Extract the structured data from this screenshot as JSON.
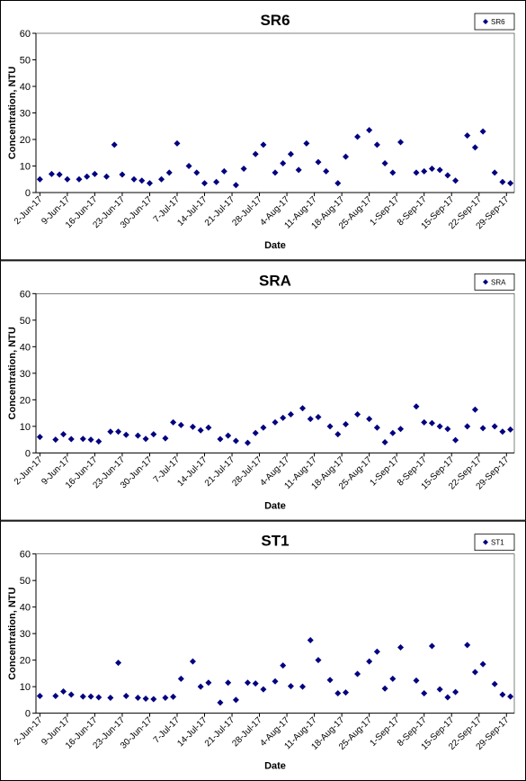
{
  "chart_data": [
    {
      "type": "scatter",
      "title": "SR6",
      "x_label": "Date",
      "y_label": "Concentration, NTU",
      "xlim": [
        "1-Jun-17",
        "1-Oct-17"
      ],
      "xticks": [
        "2-Jun-17",
        "9-Jun-17",
        "16-Jun-17",
        "23-Jun-17",
        "30-Jun-17",
        "7-Jul-17",
        "14-Jul-17",
        "21-Jul-17",
        "28-Jul-17",
        "4-Aug-17",
        "11-Aug-17",
        "18-Aug-17",
        "25-Aug-17",
        "1-Sep-17",
        "8-Sep-17",
        "15-Sep-17",
        "22-Sep-17",
        "29-Sep-17"
      ],
      "ylim": [
        0,
        60
      ],
      "yticks": [
        0,
        10,
        20,
        30,
        40,
        50,
        60
      ],
      "legend": "upper right",
      "series": [
        {
          "name": "SR6",
          "color": "#000080",
          "x": [
            "2-Jun-17",
            "5-Jun-17",
            "7-Jun-17",
            "9-Jun-17",
            "12-Jun-17",
            "14-Jun-17",
            "16-Jun-17",
            "19-Jun-17",
            "21-Jun-17",
            "23-Jun-17",
            "26-Jun-17",
            "28-Jun-17",
            "30-Jun-17",
            "3-Jul-17",
            "5-Jul-17",
            "7-Jul-17",
            "10-Jul-17",
            "12-Jul-17",
            "14-Jul-17",
            "17-Jul-17",
            "19-Jul-17",
            "22-Jul-17",
            "24-Jul-17",
            "27-Jul-17",
            "29-Jul-17",
            "1-Aug-17",
            "3-Aug-17",
            "5-Aug-17",
            "7-Aug-17",
            "9-Aug-17",
            "12-Aug-17",
            "14-Aug-17",
            "17-Aug-17",
            "19-Aug-17",
            "22-Aug-17",
            "25-Aug-17",
            "27-Aug-17",
            "29-Aug-17",
            "31-Aug-17",
            "2-Sep-17",
            "6-Sep-17",
            "8-Sep-17",
            "10-Sep-17",
            "12-Sep-17",
            "14-Sep-17",
            "16-Sep-17",
            "19-Sep-17",
            "21-Sep-17",
            "23-Sep-17",
            "26-Sep-17",
            "28-Sep-17",
            "30-Sep-17"
          ],
          "values": [
            5,
            7,
            6.8,
            5,
            5,
            6,
            7,
            6,
            18,
            6.8,
            5,
            4.5,
            3.5,
            5,
            7.5,
            18.5,
            10,
            7.5,
            3.5,
            4,
            8,
            2.8,
            9,
            14.5,
            18,
            7.5,
            11,
            14.5,
            8.5,
            18.5,
            11.5,
            8,
            3.5,
            13.5,
            21,
            23.5,
            18,
            11,
            7.5,
            19,
            7.5,
            8,
            9,
            8.5,
            6.5,
            4.5,
            21.5,
            17,
            23,
            7.5,
            4,
            3.5
          ]
        }
      ]
    },
    {
      "type": "scatter",
      "title": "SRA",
      "x_label": "Date",
      "y_label": "Concentration, NTU",
      "xlim": [
        "1-Jun-17",
        "1-Oct-17"
      ],
      "xticks": [
        "2-Jun-17",
        "9-Jun-17",
        "16-Jun-17",
        "23-Jun-17",
        "30-Jun-17",
        "7-Jul-17",
        "14-Jul-17",
        "21-Jul-17",
        "28-Jul-17",
        "4-Aug-17",
        "11-Aug-17",
        "18-Aug-17",
        "25-Aug-17",
        "1-Sep-17",
        "8-Sep-17",
        "15-Sep-17",
        "22-Sep-17",
        "29-Sep-17"
      ],
      "ylim": [
        0,
        60
      ],
      "yticks": [
        0,
        10,
        20,
        30,
        40,
        50,
        60
      ],
      "legend": "upper right",
      "series": [
        {
          "name": "SRA",
          "color": "#000080",
          "x": [
            "2-Jun-17",
            "6-Jun-17",
            "8-Jun-17",
            "10-Jun-17",
            "13-Jun-17",
            "15-Jun-17",
            "17-Jun-17",
            "20-Jun-17",
            "22-Jun-17",
            "24-Jun-17",
            "27-Jun-17",
            "29-Jun-17",
            "1-Jul-17",
            "4-Jul-17",
            "6-Jul-17",
            "8-Jul-17",
            "11-Jul-17",
            "13-Jul-17",
            "15-Jul-17",
            "18-Jul-17",
            "20-Jul-17",
            "22-Jul-17",
            "25-Jul-17",
            "27-Jul-17",
            "29-Jul-17",
            "1-Aug-17",
            "3-Aug-17",
            "5-Aug-17",
            "8-Aug-17",
            "10-Aug-17",
            "12-Aug-17",
            "15-Aug-17",
            "17-Aug-17",
            "19-Aug-17",
            "22-Aug-17",
            "25-Aug-17",
            "27-Aug-17",
            "29-Aug-17",
            "31-Aug-17",
            "2-Sep-17",
            "6-Sep-17",
            "8-Sep-17",
            "10-Sep-17",
            "12-Sep-17",
            "14-Sep-17",
            "16-Sep-17",
            "19-Sep-17",
            "21-Sep-17",
            "23-Sep-17",
            "26-Sep-17",
            "28-Sep-17",
            "30-Sep-17"
          ],
          "values": [
            6,
            5,
            7,
            5.2,
            5.3,
            5,
            4.3,
            8,
            8,
            6.8,
            6.5,
            5.3,
            7,
            5.5,
            11.5,
            10.5,
            9.8,
            8.5,
            9.5,
            5.2,
            6.5,
            4.5,
            3.8,
            7.5,
            9.5,
            11.5,
            13.2,
            14.5,
            16.8,
            12.8,
            13.5,
            10,
            7,
            10.8,
            14.5,
            12.8,
            9.5,
            4,
            7.5,
            9,
            17.5,
            11.5,
            11.2,
            10,
            9,
            4.8,
            10,
            16.3,
            9.3,
            10,
            8,
            8.8
          ]
        }
      ]
    },
    {
      "type": "scatter",
      "title": "ST1",
      "x_label": "Date",
      "y_label": "Concentration, NTU",
      "xlim": [
        "1-Jun-17",
        "1-Oct-17"
      ],
      "xticks": [
        "2-Jun-17",
        "9-Jun-17",
        "16-Jun-17",
        "23-Jun-17",
        "30-Jun-17",
        "7-Jul-17",
        "14-Jul-17",
        "21-Jul-17",
        "28-Jul-17",
        "4-Aug-17",
        "11-Aug-17",
        "18-Aug-17",
        "25-Aug-17",
        "1-Sep-17",
        "8-Sep-17",
        "15-Sep-17",
        "22-Sep-17",
        "29-Sep-17"
      ],
      "ylim": [
        0,
        60
      ],
      "yticks": [
        0,
        10,
        20,
        30,
        40,
        50,
        60
      ],
      "legend": "upper right",
      "series": [
        {
          "name": "ST1",
          "color": "#000080",
          "x": [
            "2-Jun-17",
            "6-Jun-17",
            "8-Jun-17",
            "10-Jun-17",
            "13-Jun-17",
            "15-Jun-17",
            "17-Jun-17",
            "20-Jun-17",
            "22-Jun-17",
            "24-Jun-17",
            "27-Jun-17",
            "29-Jun-17",
            "1-Jul-17",
            "4-Jul-17",
            "6-Jul-17",
            "8-Jul-17",
            "11-Jul-17",
            "13-Jul-17",
            "15-Jul-17",
            "18-Jul-17",
            "20-Jul-17",
            "22-Jul-17",
            "25-Jul-17",
            "27-Jul-17",
            "29-Jul-17",
            "1-Aug-17",
            "3-Aug-17",
            "5-Aug-17",
            "8-Aug-17",
            "10-Aug-17",
            "12-Aug-17",
            "15-Aug-17",
            "17-Aug-17",
            "19-Aug-17",
            "22-Aug-17",
            "25-Aug-17",
            "27-Aug-17",
            "29-Aug-17",
            "31-Aug-17",
            "2-Sep-17",
            "6-Sep-17",
            "8-Sep-17",
            "10-Sep-17",
            "12-Sep-17",
            "14-Sep-17",
            "16-Sep-17",
            "19-Sep-17",
            "21-Sep-17",
            "23-Sep-17",
            "26-Sep-17",
            "28-Sep-17",
            "30-Sep-17"
          ],
          "values": [
            6.5,
            6.5,
            8.2,
            7,
            6.3,
            6.3,
            6,
            5.8,
            19,
            6.5,
            5.8,
            5.5,
            5.3,
            5.8,
            6.2,
            13,
            19.5,
            10,
            11.5,
            4,
            11.5,
            5,
            11.5,
            11.2,
            9,
            12,
            18,
            10.2,
            10,
            27.5,
            20,
            12.5,
            7.5,
            7.8,
            14.8,
            19.5,
            23.2,
            9.3,
            13,
            24.8,
            12.3,
            7.5,
            25.3,
            9,
            6,
            8,
            25.7,
            15.5,
            18.5,
            11,
            7,
            6.3
          ]
        }
      ]
    }
  ]
}
